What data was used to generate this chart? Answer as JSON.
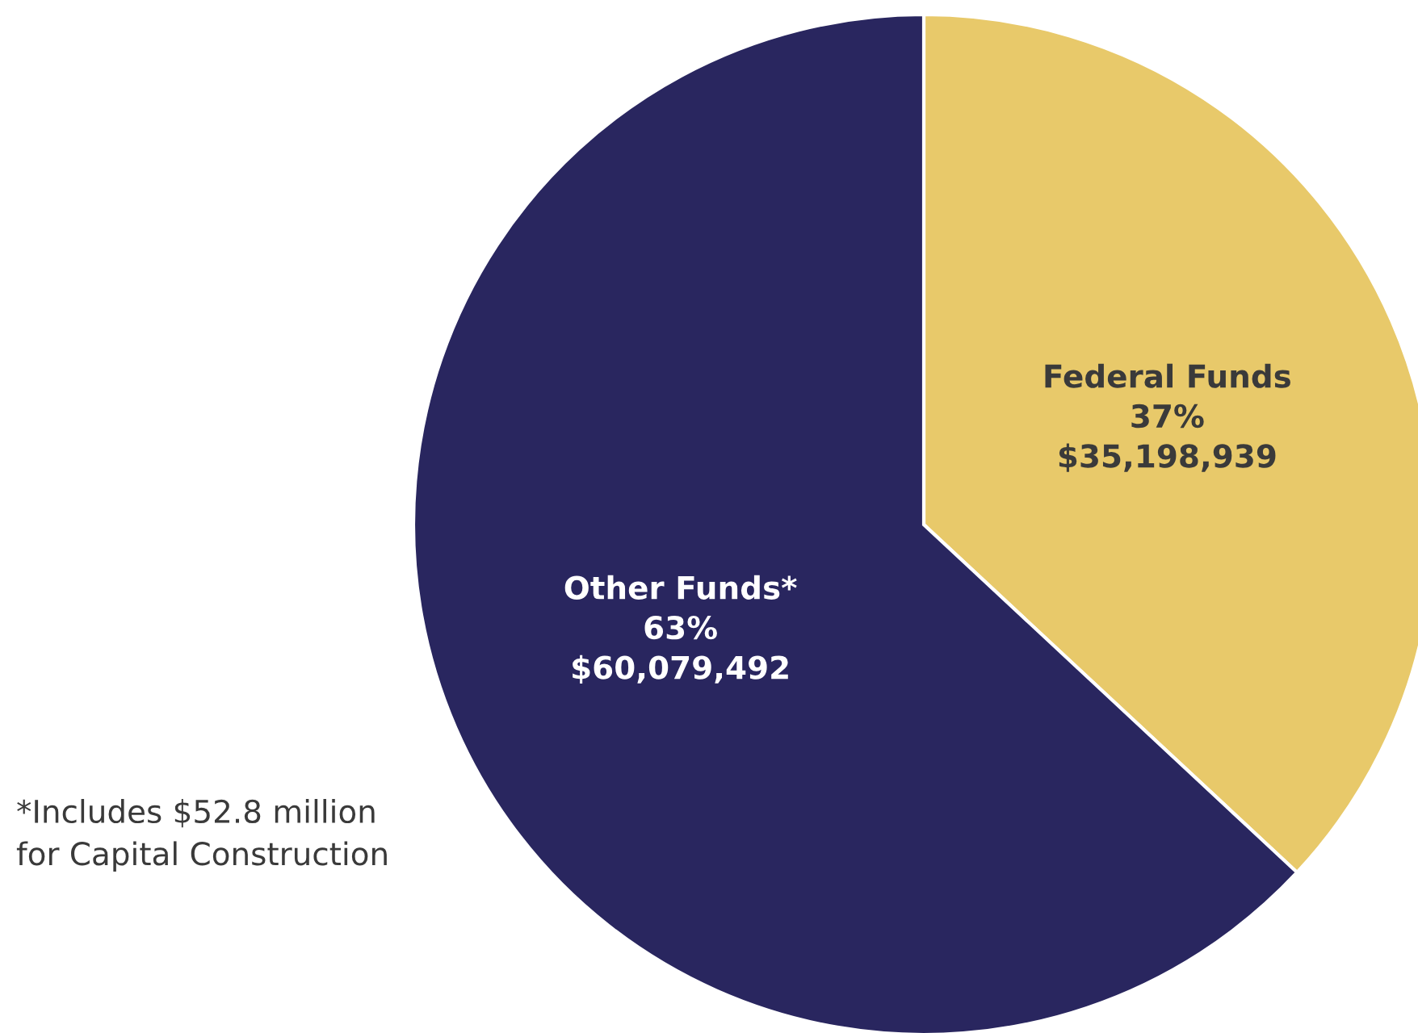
{
  "chart_data": {
    "type": "pie",
    "categories": [
      "Federal Funds",
      "Other Funds*"
    ],
    "values": [
      35198939,
      60079492
    ],
    "value_labels": [
      "37%\n$35,198,939",
      "63%\n$60,079,492"
    ],
    "colors": [
      "#e8c96a",
      "#29265f"
    ],
    "annotations": [
      "*Includes $52.8 million\nfor Capital Construction"
    ]
  }
}
